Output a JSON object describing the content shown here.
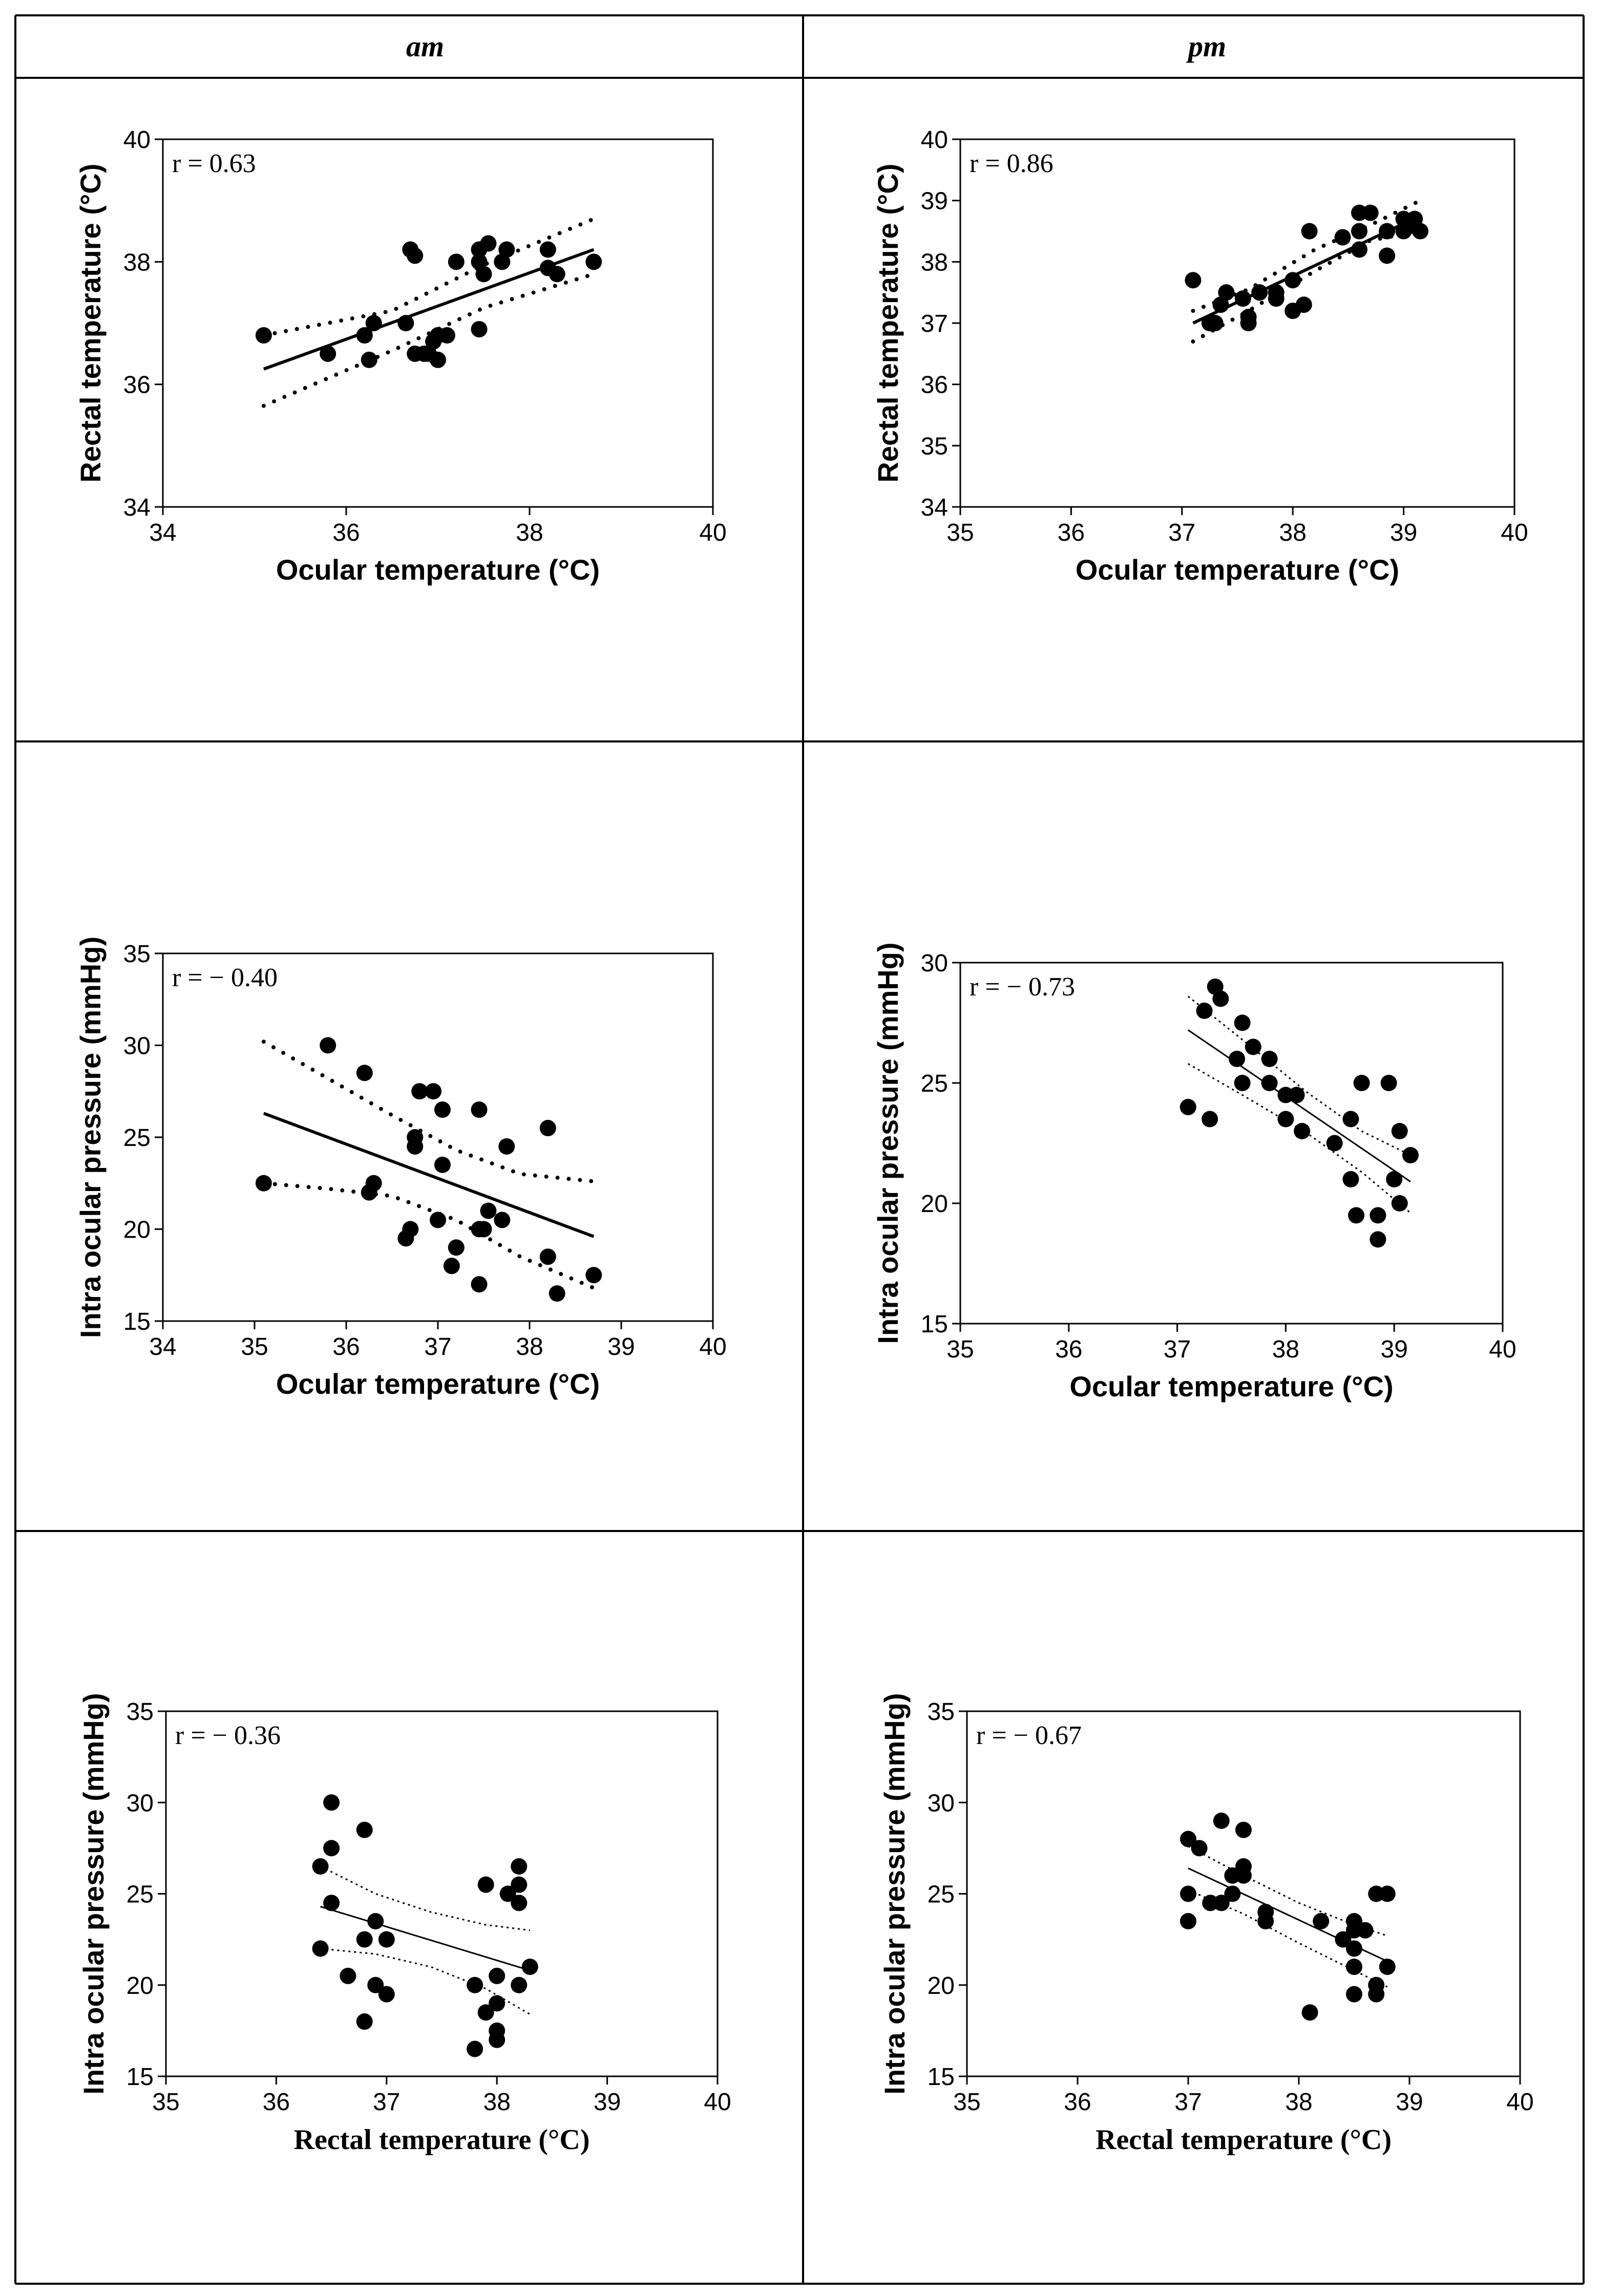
{
  "headers": {
    "am": "am",
    "pm": "pm"
  },
  "chart_data": [
    {
      "type": "scatter",
      "id": "am-ocular-rectal",
      "column": "am",
      "annotation": "r = 0.63",
      "xlabel": "Ocular temperature (°C)",
      "ylabel": "Rectal temperature (°C)",
      "xlim": [
        34,
        40
      ],
      "xticks": [
        34,
        36,
        38,
        40
      ],
      "ylim": [
        34,
        40
      ],
      "yticks": [
        34,
        36,
        38,
        40
      ],
      "points": [
        [
          35.1,
          36.8
        ],
        [
          35.8,
          36.5
        ],
        [
          36.2,
          36.8
        ],
        [
          36.25,
          36.4
        ],
        [
          36.3,
          37.0
        ],
        [
          36.65,
          37.0
        ],
        [
          36.7,
          38.2
        ],
        [
          36.75,
          38.1
        ],
        [
          36.75,
          36.5
        ],
        [
          36.85,
          36.5
        ],
        [
          36.9,
          36.5
        ],
        [
          36.95,
          36.7
        ],
        [
          37.0,
          36.8
        ],
        [
          37.0,
          36.4
        ],
        [
          37.1,
          36.8
        ],
        [
          37.2,
          38.0
        ],
        [
          37.45,
          36.9
        ],
        [
          37.45,
          38.2
        ],
        [
          37.45,
          38.0
        ],
        [
          37.5,
          37.8
        ],
        [
          37.55,
          38.3
        ],
        [
          37.7,
          38.0
        ],
        [
          37.75,
          38.2
        ],
        [
          38.2,
          38.2
        ],
        [
          38.2,
          37.9
        ],
        [
          38.3,
          37.8
        ],
        [
          38.7,
          38.0
        ]
      ],
      "fit": {
        "x": [
          35.1,
          38.7
        ],
        "y": [
          36.25,
          38.2
        ],
        "style": "solid-thick"
      },
      "ci_upper": {
        "x": [
          35.1,
          36.5,
          37.5,
          38.7
        ],
        "y": [
          36.8,
          37.2,
          37.95,
          38.7
        ]
      },
      "ci_lower": {
        "x": [
          35.1,
          36.5,
          37.5,
          38.7
        ],
        "y": [
          35.65,
          36.55,
          37.25,
          37.8
        ]
      },
      "ci_style": "dotted-thick"
    },
    {
      "type": "scatter",
      "id": "pm-ocular-rectal",
      "column": "pm",
      "annotation": "r = 0.86",
      "xlabel": "Ocular temperature (°C)",
      "ylabel": "Rectal temperature (°C)",
      "xlim": [
        35,
        40
      ],
      "xticks": [
        35,
        36,
        37,
        38,
        39,
        40
      ],
      "ylim": [
        34,
        40
      ],
      "yticks": [
        34,
        35,
        36,
        37,
        38,
        39,
        40
      ],
      "points": [
        [
          37.1,
          37.7
        ],
        [
          37.25,
          37.0
        ],
        [
          37.3,
          37.0
        ],
        [
          37.35,
          37.3
        ],
        [
          37.4,
          37.5
        ],
        [
          37.55,
          37.4
        ],
        [
          37.6,
          37.0
        ],
        [
          37.6,
          37.1
        ],
        [
          37.7,
          37.5
        ],
        [
          37.85,
          37.4
        ],
        [
          37.85,
          37.5
        ],
        [
          38.0,
          37.2
        ],
        [
          38.0,
          37.7
        ],
        [
          38.1,
          37.3
        ],
        [
          38.15,
          38.5
        ],
        [
          38.45,
          38.4
        ],
        [
          38.6,
          38.8
        ],
        [
          38.6,
          38.5
        ],
        [
          38.6,
          38.2
        ],
        [
          38.7,
          38.8
        ],
        [
          38.85,
          38.5
        ],
        [
          38.85,
          38.1
        ],
        [
          39.0,
          38.7
        ],
        [
          39.0,
          38.5
        ],
        [
          39.05,
          38.6
        ],
        [
          39.1,
          38.7
        ],
        [
          39.15,
          38.5
        ]
      ],
      "fit": {
        "x": [
          37.1,
          39.15
        ],
        "y": [
          37.0,
          38.75
        ],
        "style": "solid-thick"
      },
      "ci_upper": {
        "x": [
          37.1,
          37.6,
          38.2,
          38.7,
          39.15
        ],
        "y": [
          37.2,
          37.55,
          38.2,
          38.6,
          39.0
        ]
      },
      "ci_lower": {
        "x": [
          37.1,
          37.6,
          38.2,
          38.7,
          39.15
        ],
        "y": [
          36.7,
          37.2,
          37.85,
          38.35,
          38.5
        ]
      },
      "ci_style": "dotted-thick"
    },
    {
      "type": "scatter",
      "id": "am-ocular-iop",
      "column": "am",
      "annotation": "r = − 0.40",
      "xlabel": "Ocular temperature (°C)",
      "ylabel": "Intra ocular pressure (mmHg)",
      "xlim": [
        34,
        40
      ],
      "xticks": [
        34,
        35,
        36,
        37,
        38,
        39,
        40
      ],
      "ylim": [
        15,
        35
      ],
      "yticks": [
        15,
        20,
        25,
        30,
        35
      ],
      "points": [
        [
          35.1,
          22.5
        ],
        [
          35.8,
          30.0
        ],
        [
          36.2,
          28.5
        ],
        [
          36.25,
          22.0
        ],
        [
          36.3,
          22.5
        ],
        [
          36.65,
          19.5
        ],
        [
          36.7,
          20.0
        ],
        [
          36.75,
          25.0
        ],
        [
          36.75,
          24.5
        ],
        [
          36.8,
          27.5
        ],
        [
          36.95,
          27.5
        ],
        [
          37.0,
          20.5
        ],
        [
          37.05,
          26.5
        ],
        [
          37.05,
          23.5
        ],
        [
          37.15,
          18.0
        ],
        [
          37.2,
          19.0
        ],
        [
          37.45,
          26.5
        ],
        [
          37.45,
          20.0
        ],
        [
          37.5,
          20.0
        ],
        [
          37.45,
          17.0
        ],
        [
          37.55,
          21.0
        ],
        [
          37.7,
          20.5
        ],
        [
          37.75,
          24.5
        ],
        [
          38.2,
          25.5
        ],
        [
          38.2,
          18.5
        ],
        [
          38.3,
          16.5
        ],
        [
          38.7,
          17.5
        ]
      ],
      "fit": {
        "x": [
          35.1,
          38.7
        ],
        "y": [
          26.3,
          19.6
        ],
        "style": "solid-thick"
      },
      "ci_upper": {
        "x": [
          35.1,
          35.8,
          36.5,
          37.2,
          37.9,
          38.7
        ],
        "y": [
          30.2,
          28.2,
          26.2,
          24.3,
          23.0,
          22.6
        ]
      },
      "ci_lower": {
        "x": [
          35.1,
          35.8,
          36.5,
          37.2,
          37.9,
          38.7
        ],
        "y": [
          22.5,
          22.2,
          21.8,
          20.5,
          18.5,
          16.8
        ]
      },
      "ci_style": "dotted-thick"
    },
    {
      "type": "scatter",
      "id": "pm-ocular-iop",
      "column": "pm",
      "annotation": "r = − 0.73",
      "xlabel": "Ocular temperature (°C)",
      "ylabel": "Intra ocular pressure (mmHg)",
      "xlim": [
        35,
        40
      ],
      "xticks": [
        35,
        36,
        37,
        38,
        39,
        40
      ],
      "ylim": [
        15,
        30
      ],
      "yticks": [
        15,
        20,
        25,
        30
      ],
      "points": [
        [
          37.1,
          24.0
        ],
        [
          37.25,
          28.0
        ],
        [
          37.3,
          23.5
        ],
        [
          37.35,
          29.0
        ],
        [
          37.4,
          28.5
        ],
        [
          37.55,
          26.0
        ],
        [
          37.6,
          25.0
        ],
        [
          37.6,
          27.5
        ],
        [
          37.7,
          26.5
        ],
        [
          37.85,
          26.0
        ],
        [
          37.85,
          25.0
        ],
        [
          38.0,
          24.5
        ],
        [
          38.0,
          23.5
        ],
        [
          38.1,
          24.5
        ],
        [
          38.15,
          23.0
        ],
        [
          38.45,
          22.5
        ],
        [
          38.6,
          23.5
        ],
        [
          38.6,
          21.0
        ],
        [
          38.65,
          19.5
        ],
        [
          38.7,
          25.0
        ],
        [
          38.85,
          19.5
        ],
        [
          38.85,
          18.5
        ],
        [
          38.95,
          25.0
        ],
        [
          39.0,
          21.0
        ],
        [
          39.05,
          23.0
        ],
        [
          39.05,
          20.0
        ],
        [
          39.15,
          22.0
        ]
      ],
      "fit": {
        "x": [
          37.1,
          39.15
        ],
        "y": [
          27.2,
          20.9
        ],
        "style": "solid-thin"
      },
      "ci_upper": {
        "x": [
          37.1,
          37.6,
          38.2,
          38.7,
          39.15
        ],
        "y": [
          28.6,
          26.8,
          24.6,
          23.0,
          22.0
        ]
      },
      "ci_lower": {
        "x": [
          37.1,
          37.6,
          38.2,
          38.7,
          39.15
        ],
        "y": [
          25.8,
          24.5,
          22.9,
          21.3,
          19.6
        ]
      },
      "ci_style": "dotted-thin"
    },
    {
      "type": "scatter",
      "id": "am-rectal-iop",
      "column": "am",
      "annotation": "r = − 0.36",
      "xlabel": "Rectal temperature (°C)",
      "ylabel": "Intra ocular pressure (mmHg)",
      "xlim": [
        35,
        40
      ],
      "xticks": [
        35,
        36,
        37,
        38,
        39,
        40
      ],
      "ylim": [
        15,
        35
      ],
      "yticks": [
        15,
        20,
        25,
        30,
        35
      ],
      "points": [
        [
          36.4,
          26.5
        ],
        [
          36.4,
          22.0
        ],
        [
          36.5,
          30.0
        ],
        [
          36.5,
          27.5
        ],
        [
          36.5,
          24.5
        ],
        [
          36.65,
          20.5
        ],
        [
          36.8,
          28.5
        ],
        [
          36.8,
          22.5
        ],
        [
          36.8,
          18.0
        ],
        [
          36.9,
          23.5
        ],
        [
          36.9,
          20.0
        ],
        [
          37.0,
          22.5
        ],
        [
          37.0,
          19.5
        ],
        [
          37.8,
          20.0
        ],
        [
          37.8,
          16.5
        ],
        [
          37.9,
          25.5
        ],
        [
          37.9,
          18.5
        ],
        [
          38.0,
          20.5
        ],
        [
          38.0,
          19.0
        ],
        [
          38.0,
          17.5
        ],
        [
          38.0,
          17.0
        ],
        [
          38.1,
          25.0
        ],
        [
          38.2,
          26.5
        ],
        [
          38.2,
          25.5
        ],
        [
          38.2,
          24.5
        ],
        [
          38.2,
          20.0
        ],
        [
          38.3,
          21.0
        ]
      ],
      "fit": {
        "x": [
          36.4,
          38.3
        ],
        "y": [
          24.3,
          20.8
        ],
        "style": "solid-thin"
      },
      "ci_upper": {
        "x": [
          36.4,
          36.9,
          37.4,
          37.9,
          38.3
        ],
        "y": [
          26.5,
          25.0,
          24.0,
          23.3,
          23.0
        ]
      },
      "ci_lower": {
        "x": [
          36.4,
          36.9,
          37.4,
          37.9,
          38.3
        ],
        "y": [
          22.0,
          21.7,
          21.0,
          19.8,
          18.4
        ]
      },
      "ci_style": "dotted-thin"
    },
    {
      "type": "scatter",
      "id": "pm-rectal-iop",
      "column": "pm",
      "annotation": "r = − 0.67",
      "xlabel": "Rectal temperature (°C)",
      "ylabel": "Intra ocular pressure (mmHg)",
      "xlim": [
        35,
        40
      ],
      "xticks": [
        35,
        36,
        37,
        38,
        39,
        40
      ],
      "ylim": [
        15,
        35
      ],
      "yticks": [
        15,
        20,
        25,
        30,
        35
      ],
      "points": [
        [
          37.0,
          28.0
        ],
        [
          37.0,
          25.0
        ],
        [
          37.0,
          23.5
        ],
        [
          37.1,
          27.5
        ],
        [
          37.2,
          24.5
        ],
        [
          37.3,
          29.0
        ],
        [
          37.3,
          24.5
        ],
        [
          37.4,
          26.0
        ],
        [
          37.4,
          25.0
        ],
        [
          37.5,
          28.5
        ],
        [
          37.5,
          26.5
        ],
        [
          37.5,
          26.0
        ],
        [
          37.7,
          24.0
        ],
        [
          37.7,
          23.5
        ],
        [
          38.1,
          18.5
        ],
        [
          38.2,
          23.5
        ],
        [
          38.4,
          22.5
        ],
        [
          38.5,
          23.5
        ],
        [
          38.5,
          23.0
        ],
        [
          38.5,
          22.0
        ],
        [
          38.5,
          21.0
        ],
        [
          38.5,
          19.5
        ],
        [
          38.6,
          23.0
        ],
        [
          38.7,
          25.0
        ],
        [
          38.7,
          20.0
        ],
        [
          38.7,
          19.5
        ],
        [
          38.8,
          25.0
        ],
        [
          38.8,
          21.0
        ]
      ],
      "fit": {
        "x": [
          37.0,
          38.8
        ],
        "y": [
          26.4,
          21.3
        ],
        "style": "solid-thin"
      },
      "ci_upper": {
        "x": [
          37.0,
          37.5,
          38.0,
          38.5,
          38.8
        ],
        "y": [
          27.6,
          26.0,
          24.5,
          23.3,
          22.7
        ]
      },
      "ci_lower": {
        "x": [
          37.0,
          37.5,
          38.0,
          38.5,
          38.8
        ],
        "y": [
          25.2,
          23.9,
          22.3,
          20.8,
          19.9
        ]
      },
      "ci_style": "dotted-thin"
    }
  ]
}
